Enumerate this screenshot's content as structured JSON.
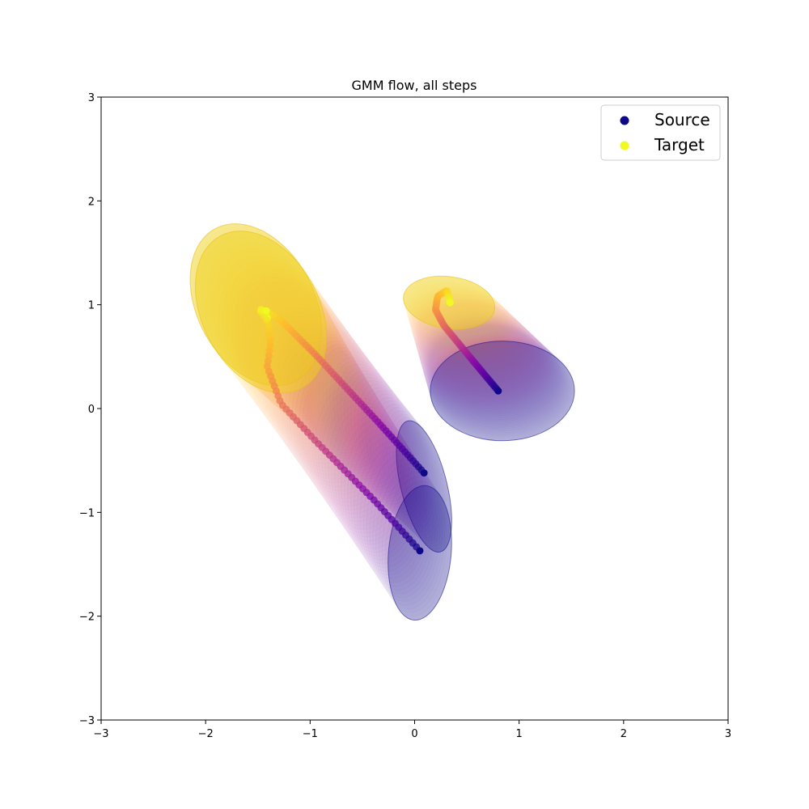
{
  "chart_data": {
    "type": "scatter",
    "title": "GMM flow, all steps",
    "xlabel": "",
    "ylabel": "",
    "xlim": [
      -3,
      3
    ],
    "ylim": [
      -3,
      3
    ],
    "x_ticks": [
      "−3",
      "−2",
      "−1",
      "0",
      "1",
      "2",
      "3"
    ],
    "y_ticks": [
      "−3",
      "−2",
      "−1",
      "0",
      "1",
      "2",
      "3"
    ],
    "x_tick_values": [
      -3,
      -2,
      -1,
      0,
      1,
      2,
      3
    ],
    "y_tick_values": [
      -3,
      -2,
      -1,
      0,
      1,
      2,
      3
    ],
    "grid": false,
    "legend_placement": "top-right",
    "colormap": "plasma",
    "legend": [
      {
        "label": "Source",
        "color": "#0d0887"
      },
      {
        "label": "Target",
        "color": "#f0f921"
      }
    ],
    "trajectories": [
      {
        "waypoints": [
          [
            0.8,
            0.17
          ],
          [
            0.55,
            0.47
          ],
          [
            0.28,
            0.8
          ],
          [
            0.2,
            0.95
          ],
          [
            0.22,
            1.08
          ],
          [
            0.31,
            1.14
          ],
          [
            0.34,
            1.02
          ]
        ],
        "source_ellipse": {
          "cx": 0.84,
          "cy": 0.17,
          "rx": 0.69,
          "ry": 0.48,
          "angle": 0
        },
        "target_ellipse": {
          "cx": 0.33,
          "cy": 1.02,
          "rx": 0.44,
          "ry": 0.25,
          "angle": -8
        }
      },
      {
        "waypoints": [
          [
            0.09,
            -0.62
          ],
          [
            -0.35,
            -0.13
          ],
          [
            -0.95,
            0.52
          ],
          [
            -1.31,
            0.88
          ],
          [
            -1.45,
            0.95
          ],
          [
            -1.41,
            0.87
          ]
        ],
        "source_ellipse": {
          "cx": 0.09,
          "cy": -0.75,
          "rx": 0.22,
          "ry": 0.65,
          "angle": 14
        },
        "target_ellipse": {
          "cx": -1.52,
          "cy": 1.0,
          "rx": 0.56,
          "ry": 0.83,
          "angle": 28
        }
      },
      {
        "waypoints": [
          [
            0.05,
            -1.37
          ],
          [
            -0.38,
            -0.89
          ],
          [
            -0.95,
            -0.31
          ],
          [
            -1.28,
            0.05
          ],
          [
            -1.41,
            0.4
          ],
          [
            -1.38,
            0.62
          ],
          [
            -1.4,
            0.83
          ],
          [
            -1.49,
            0.96
          ],
          [
            -1.42,
            0.94
          ]
        ],
        "source_ellipse": {
          "cx": 0.05,
          "cy": -1.39,
          "rx": 0.3,
          "ry": 0.65,
          "angle": -5
        },
        "target_ellipse": {
          "cx": -1.47,
          "cy": 0.93,
          "rx": 0.56,
          "ry": 0.83,
          "angle": 28
        }
      }
    ]
  }
}
